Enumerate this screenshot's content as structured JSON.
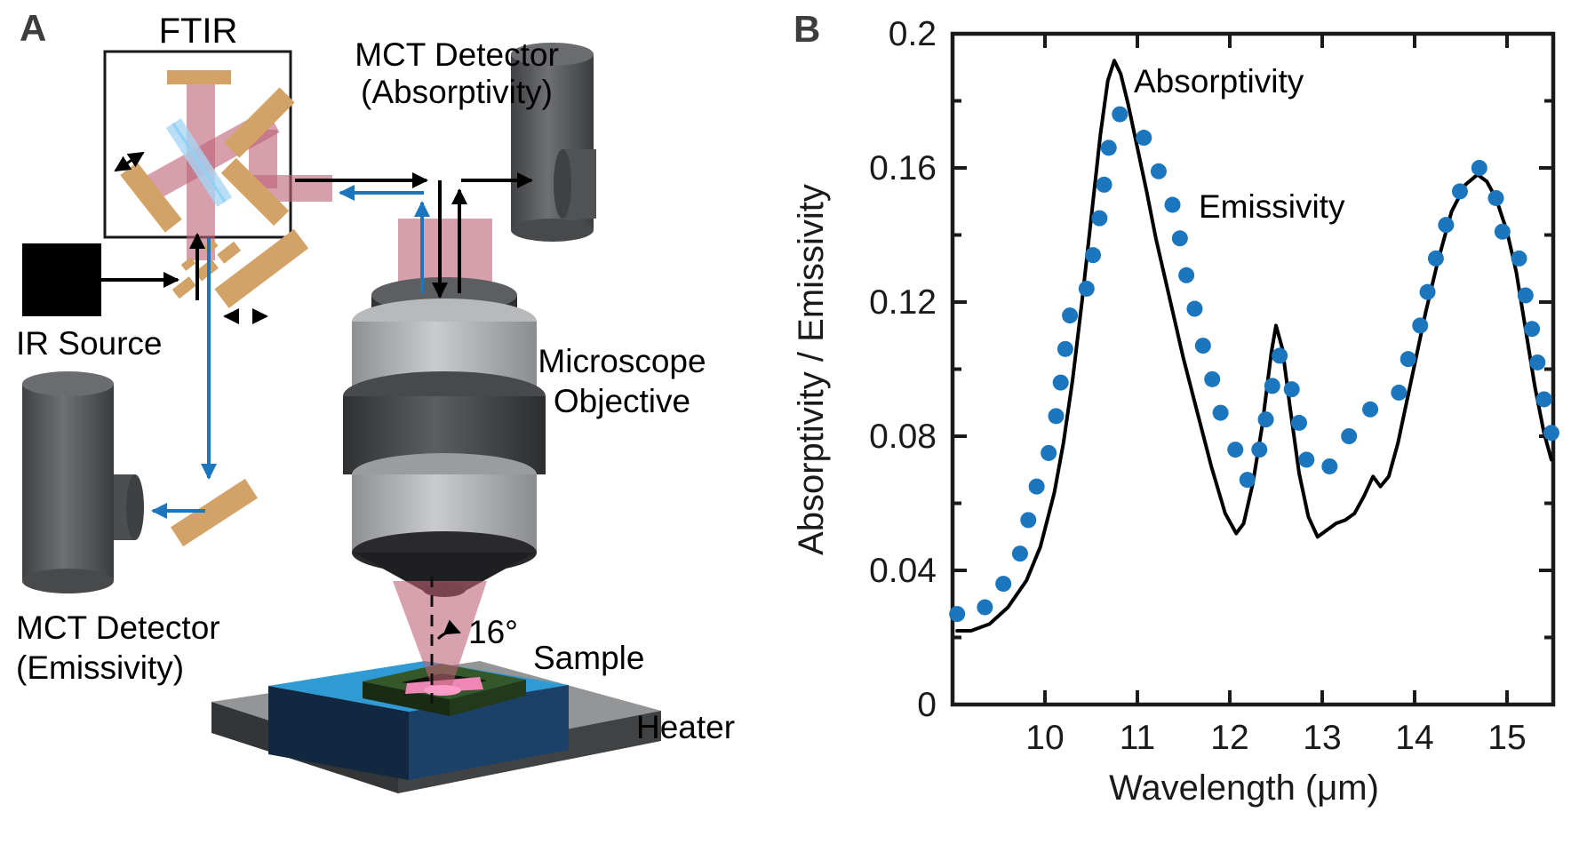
{
  "figure": {
    "panel_a": {
      "label": "A",
      "ftir": "FTIR",
      "mct_absorptivity": {
        "line1": "MCT Detector",
        "line2": "(Absorptivity)"
      },
      "ir_source": "IR Source",
      "mct_emissivity": {
        "line1": "MCT Detector",
        "line2": "(Emissivity)"
      },
      "objective": {
        "line1": "Microscope",
        "line2": "Objective"
      },
      "angle": "16°",
      "sample": "Sample",
      "heater": "Heater"
    },
    "panel_b": {
      "label": "B",
      "annotation_absorptivity": "Absorptivity",
      "annotation_emissivity": "Emissivity"
    }
  },
  "colors": {
    "emissivity_blue": "#1b76bd",
    "absorptivity_black": "#000000",
    "mirror_tan": "#d2a266",
    "beam_pink": "#bd6477",
    "beamsplitter_blue": "#a9d6f2",
    "stage_top_blue": "#2f9ad3",
    "frame_green": "#35582b",
    "sample_pink": "#ee87b6",
    "axis_color": "#1a1a1a"
  },
  "chart_data": {
    "type": "line",
    "title": "",
    "xlabel": "Wavelength (μm)",
    "ylabel": "Absorptivity / Emissivity",
    "xlim": [
      9.0,
      15.5
    ],
    "ylim": [
      0,
      0.2
    ],
    "x_ticks": [
      10,
      11,
      12,
      13,
      14,
      15
    ],
    "x_tick_labels": [
      "10",
      "11",
      "12",
      "13",
      "14",
      "15"
    ],
    "y_ticks": [
      0,
      0.04,
      0.08,
      0.12,
      0.16,
      0.2
    ],
    "y_tick_labels": [
      "0",
      "0.04",
      "0.08",
      "0.12",
      "0.16",
      "0.2"
    ],
    "y_minor_ticks": [
      0.02,
      0.06,
      0.1,
      0.14,
      0.18
    ],
    "grid": false,
    "legend_position": "inline-annotations",
    "series": [
      {
        "name": "Absorptivity",
        "type": "line",
        "color": "#000000",
        "x": [
          9.05,
          9.2,
          9.4,
          9.6,
          9.8,
          9.95,
          10.1,
          10.2,
          10.3,
          10.4,
          10.5,
          10.6,
          10.68,
          10.75,
          10.82,
          10.9,
          11.0,
          11.1,
          11.2,
          11.35,
          11.5,
          11.65,
          11.8,
          11.95,
          12.07,
          12.15,
          12.25,
          12.35,
          12.45,
          12.5,
          12.57,
          12.65,
          12.75,
          12.85,
          12.95,
          13.05,
          13.15,
          13.25,
          13.35,
          13.45,
          13.55,
          13.63,
          13.72,
          13.82,
          13.92,
          14.02,
          14.12,
          14.25,
          14.4,
          14.55,
          14.68,
          14.78,
          14.88,
          15.0,
          15.1,
          15.2,
          15.3,
          15.4,
          15.48
        ],
        "y": [
          0.022,
          0.022,
          0.024,
          0.029,
          0.037,
          0.047,
          0.063,
          0.078,
          0.097,
          0.12,
          0.145,
          0.17,
          0.186,
          0.192,
          0.188,
          0.179,
          0.166,
          0.153,
          0.139,
          0.121,
          0.103,
          0.087,
          0.071,
          0.057,
          0.051,
          0.054,
          0.066,
          0.083,
          0.105,
          0.113,
          0.106,
          0.089,
          0.069,
          0.056,
          0.05,
          0.052,
          0.054,
          0.055,
          0.057,
          0.062,
          0.068,
          0.065,
          0.068,
          0.078,
          0.091,
          0.104,
          0.117,
          0.132,
          0.147,
          0.155,
          0.158,
          0.156,
          0.151,
          0.141,
          0.129,
          0.112,
          0.095,
          0.081,
          0.073
        ]
      },
      {
        "name": "Emissivity",
        "type": "scatter",
        "color": "#1b76bd",
        "x": [
          9.05,
          9.35,
          9.55,
          9.73,
          9.82,
          9.91,
          10.04,
          10.12,
          10.17,
          10.22,
          10.27,
          10.45,
          10.52,
          10.59,
          10.64,
          10.69,
          10.81,
          11.07,
          11.23,
          11.38,
          11.46,
          11.53,
          11.62,
          11.71,
          11.81,
          11.9,
          12.06,
          12.19,
          12.32,
          12.39,
          12.46,
          12.54,
          12.67,
          12.75,
          12.83,
          13.08,
          13.29,
          13.52,
          13.83,
          13.93,
          14.06,
          14.14,
          14.23,
          14.34,
          14.49,
          14.7,
          14.88,
          14.95,
          15.13,
          15.2,
          15.27,
          15.33,
          15.4,
          15.48
        ],
        "y": [
          0.027,
          0.029,
          0.036,
          0.045,
          0.055,
          0.065,
          0.075,
          0.086,
          0.096,
          0.106,
          0.116,
          0.124,
          0.134,
          0.145,
          0.155,
          0.166,
          0.176,
          0.169,
          0.159,
          0.149,
          0.139,
          0.128,
          0.118,
          0.107,
          0.097,
          0.087,
          0.076,
          0.067,
          0.076,
          0.085,
          0.095,
          0.104,
          0.094,
          0.084,
          0.073,
          0.071,
          0.08,
          0.088,
          0.093,
          0.103,
          0.113,
          0.123,
          0.133,
          0.143,
          0.153,
          0.16,
          0.151,
          0.141,
          0.133,
          0.122,
          0.112,
          0.102,
          0.091,
          0.081
        ]
      }
    ]
  }
}
